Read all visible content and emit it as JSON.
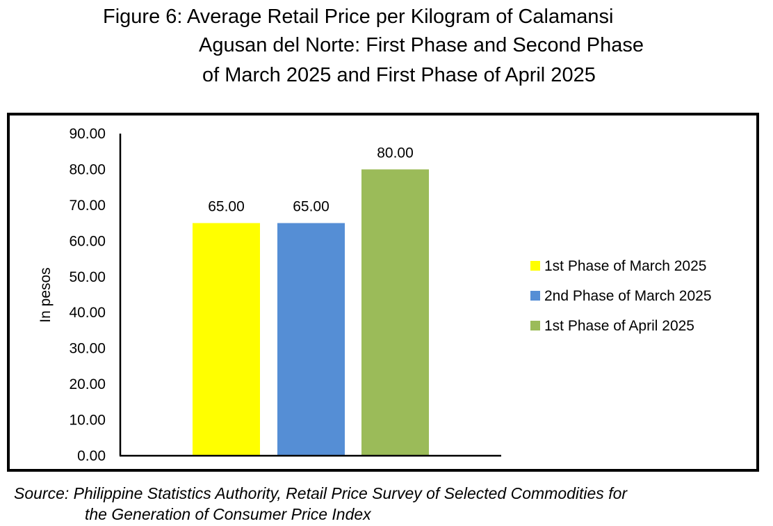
{
  "title": {
    "line1": "Figure 6: Average Retail Price per Kilogram of Calamansi",
    "line2": "Agusan del Norte: First Phase and Second Phase",
    "line3": "of March 2025 and First Phase of April 2025"
  },
  "source": {
    "line1": "Source: Philippine Statistics Authority, Retail Price Survey of Selected Commodities for",
    "line2": "the Generation of Consumer Price Index"
  },
  "chart_data": {
    "type": "bar",
    "title": "Figure 6: Average Retail Price per Kilogram of Calamansi Agusan del Norte: First Phase and Second Phase of March 2025 and First Phase of April 2025",
    "xlabel": "",
    "ylabel": "In pesos",
    "ylim": [
      0,
      90
    ],
    "yticks": [
      "0.00",
      "10.00",
      "20.00",
      "30.00",
      "40.00",
      "50.00",
      "60.00",
      "70.00",
      "80.00",
      "90.00"
    ],
    "ytick_values": [
      0,
      10,
      20,
      30,
      40,
      50,
      60,
      70,
      80,
      90
    ],
    "grid": false,
    "legend_position": "right",
    "series": [
      {
        "name": "1st Phase of March 2025",
        "value": 65,
        "label": "65.00",
        "color": "#FFFF00"
      },
      {
        "name": "2nd Phase of March 2025",
        "value": 65,
        "label": "65.00",
        "color": "#558ED5"
      },
      {
        "name": "1st Phase of April 2025",
        "value": 80,
        "label": "80.00",
        "color": "#9BBB59"
      }
    ]
  }
}
